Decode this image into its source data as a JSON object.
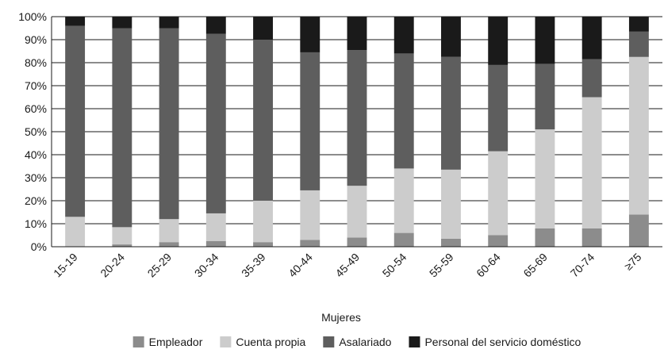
{
  "chart_data": {
    "type": "bar",
    "stacked": true,
    "percent": true,
    "title": "",
    "xlabel": "Mujeres",
    "ylabel": "",
    "ylim": [
      0,
      100
    ],
    "yticks": [
      "0%",
      "10%",
      "20%",
      "30%",
      "40%",
      "50%",
      "60%",
      "70%",
      "80%",
      "90%",
      "100%"
    ],
    "categories": [
      "15-19",
      "20-24",
      "25-29",
      "30-34",
      "35-39",
      "40-44",
      "45-49",
      "50-54",
      "55-59",
      "60-64",
      "65-69",
      "70-74",
      "≥75"
    ],
    "grid": "horizontal",
    "legend_position": "bottom",
    "series": [
      {
        "name": "Empleador",
        "color": "#8c8c8c",
        "values": [
          0,
          1,
          2,
          2.5,
          2,
          3,
          4,
          6,
          3.5,
          5,
          8,
          8,
          14
        ]
      },
      {
        "name": "Cuenta propia",
        "color": "#cccccc",
        "values": [
          13,
          7.5,
          10,
          12,
          18,
          21.5,
          22.5,
          28,
          30,
          36.5,
          43,
          57,
          68.5
        ]
      },
      {
        "name": "Asalariado",
        "color": "#5e5e5e",
        "values": [
          83,
          86.5,
          83,
          78,
          70,
          60,
          59,
          50,
          49,
          37.5,
          28.5,
          16.5,
          11
        ]
      },
      {
        "name": "Personal del servicio doméstico",
        "color": "#1a1a1a",
        "values": [
          4,
          5,
          5,
          7.5,
          10,
          15.5,
          14.5,
          16,
          17.5,
          21,
          20.5,
          18.5,
          6.5
        ]
      }
    ]
  }
}
